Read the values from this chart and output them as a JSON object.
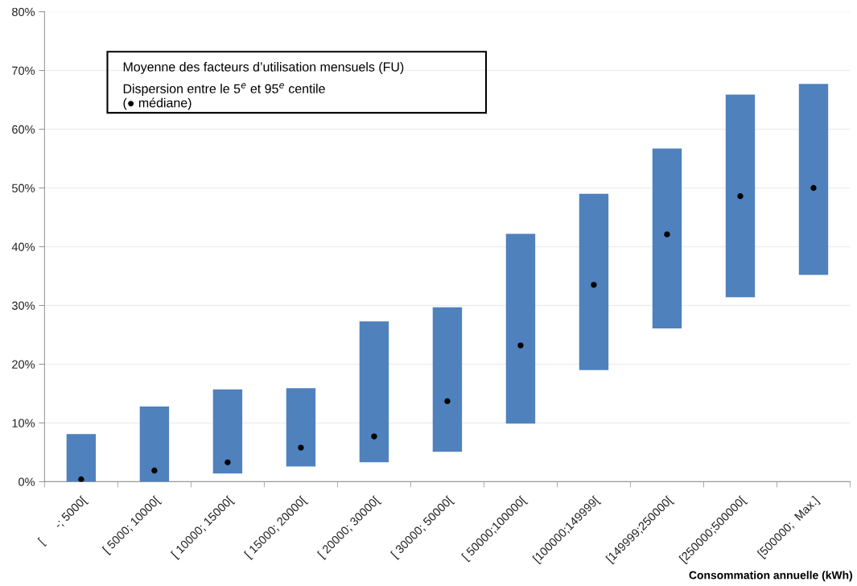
{
  "chart_data": {
    "type": "bar",
    "xlabel": "Consommation annuelle (kWh)",
    "annotations": [
      "Moyenne des facteurs d’utilisation mensuels (FU)",
      "Dispersion entre le 5$^{e}$ et 95$^{e}$ centile\n(● médiane)"
    ],
    "categories": [
      "[      -; 5000[",
      "[ 5000; 10000[",
      "[ 10000; 15000[",
      "[ 15000; 20000[",
      "[ 20000; 30000[",
      "[ 30000; 50000[",
      "[ 50000;100000[",
      "[100000;149999[",
      "[149999;250000[",
      "[250000;500000[",
      "[500000;  Max.]"
    ],
    "series": [
      {
        "color": "#4f81bd",
        "base": [
          0,
          0,
          1.4,
          2.6,
          3.3,
          5.1,
          9.9,
          19.0,
          26.1,
          31.4,
          35.2
        ],
        "values": [
          8.1,
          12.8,
          14.3,
          13.3,
          24.0,
          24.6,
          32.3,
          30.0,
          30.6,
          34.5,
          32.5
        ]
      },
      {
        "type": "scatter",
        "color": "#000000",
        "marker": "circle",
        "values": [
          0.4,
          1.9,
          3.3,
          5.8,
          7.7,
          13.7,
          23.2,
          33.5,
          42.1,
          48.6,
          50.0
        ]
      }
    ],
    "ylim": [
      0,
      80
    ],
    "yticks": [
      {
        "value": 0,
        "label": "0%"
      },
      {
        "value": 10,
        "label": "10%"
      },
      {
        "value": 20,
        "label": "20%"
      },
      {
        "value": 30,
        "label": "30%"
      },
      {
        "value": 40,
        "label": "40%"
      },
      {
        "value": 50,
        "label": "50%"
      },
      {
        "value": 60,
        "label": "60%"
      },
      {
        "value": 70,
        "label": "70%"
      },
      {
        "value": 80,
        "label": "80%"
      }
    ],
    "grid": "y",
    "legend": false
  }
}
